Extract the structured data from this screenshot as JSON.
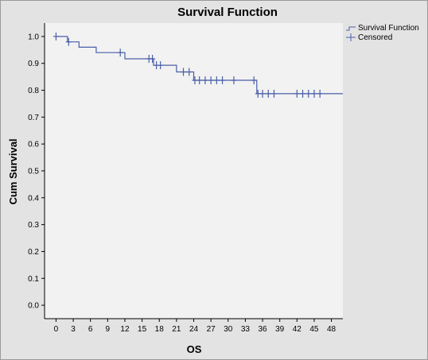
{
  "chart_data": {
    "type": "line",
    "title": "Survival Function",
    "xlabel": "OS",
    "ylabel": "Cum Survival",
    "xlim": [
      -2,
      50
    ],
    "ylim": [
      -0.05,
      1.05
    ],
    "xticks": [
      0,
      3,
      6,
      9,
      12,
      15,
      18,
      21,
      24,
      27,
      30,
      33,
      36,
      39,
      42,
      45,
      48
    ],
    "xtick_labels": [
      "0",
      "3",
      "6",
      "9",
      "12",
      "15",
      "18",
      "21",
      "24",
      "27",
      "30",
      "33",
      "36",
      "39",
      "42",
      "45",
      "48"
    ],
    "yticks": [
      0.0,
      0.1,
      0.2,
      0.3,
      0.4,
      0.5,
      0.6,
      0.7,
      0.8,
      0.9,
      1.0
    ],
    "ytick_labels": [
      "0.0",
      "0.1",
      "0.2",
      "0.3",
      "0.4",
      "0.5",
      "0.6",
      "0.7",
      "0.8",
      "0.9",
      "1.0"
    ],
    "grid": false,
    "legend_position": "top-right",
    "line_color": "#4a5fa8",
    "series": [
      {
        "name": "Survival Function",
        "step": true,
        "x": [
          0,
          2,
          4,
          7,
          12,
          17,
          21,
          24,
          35,
          50
        ],
        "y": [
          1.0,
          0.98,
          0.96,
          0.94,
          0.917,
          0.893,
          0.868,
          0.837,
          0.787,
          0.787
        ]
      },
      {
        "name": "Censored",
        "marker": "plus",
        "x": [
          0,
          2.2,
          11.2,
          16.2,
          16.8,
          17.5,
          18.2,
          22.2,
          23.2,
          24.2,
          25,
          26,
          27,
          28,
          29,
          31,
          34.5,
          35.2,
          36,
          37,
          38,
          42,
          43,
          44,
          45,
          46
        ],
        "y": [
          1.0,
          0.98,
          0.94,
          0.917,
          0.917,
          0.893,
          0.893,
          0.868,
          0.868,
          0.837,
          0.837,
          0.837,
          0.837,
          0.837,
          0.837,
          0.837,
          0.837,
          0.787,
          0.787,
          0.787,
          0.787,
          0.787,
          0.787,
          0.787,
          0.787,
          0.787
        ]
      }
    ]
  }
}
